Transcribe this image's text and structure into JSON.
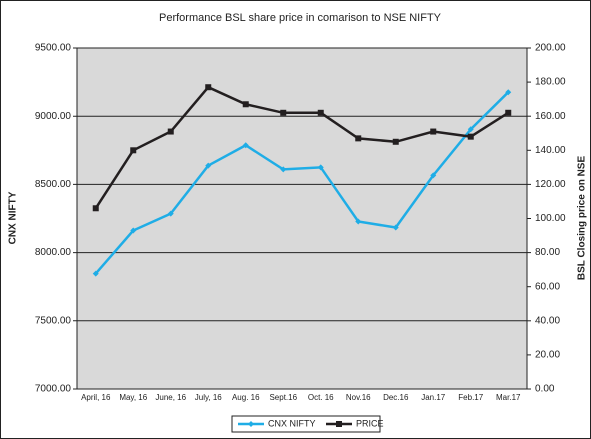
{
  "chart_data": {
    "type": "line",
    "title": "Performance BSL share price in comarison to NSE NIFTY",
    "y_label": "CNX NIFTY",
    "y2_label": "BSL Closing price on NSE",
    "categories": [
      "April, 16",
      "May, 16",
      "June, 16",
      "July, 16",
      "Aug. 16",
      "Sept.16",
      "Oct. 16",
      "Nov.16",
      "Dec.16",
      "Jan.17",
      "Feb.17",
      "Mar.17"
    ],
    "series": [
      {
        "name": "CNX NIFTY",
        "color": "#1fade6",
        "values": [
          7846,
          8162,
          8286,
          8638,
          8787,
          8610,
          8625,
          8228,
          8184,
          8566,
          8904,
          9176
        ]
      },
      {
        "name": "PRICE",
        "color": "#231f20",
        "axis": "y2",
        "values": [
          106,
          140,
          151,
          177,
          167,
          162,
          162,
          147,
          145,
          151,
          148,
          162
        ]
      }
    ],
    "ylim": [
      7000,
      9500
    ],
    "yticks": [
      {
        "value": 7000,
        "label": "7000.00"
      },
      {
        "value": 7500,
        "label": "7500.00"
      },
      {
        "value": 8000,
        "label": "8000.00"
      },
      {
        "value": 8500,
        "label": "8500.00"
      },
      {
        "value": 9000,
        "label": "9000.00"
      },
      {
        "value": 9500,
        "label": "9500.00"
      }
    ],
    "y2lim": [
      0,
      200
    ],
    "y2ticks": [
      {
        "value": 0,
        "label": "0.00"
      },
      {
        "value": 20,
        "label": "20.00"
      },
      {
        "value": 40,
        "label": "40.00"
      },
      {
        "value": 60,
        "label": "60.00"
      },
      {
        "value": 80,
        "label": "80.00"
      },
      {
        "value": 100,
        "label": "100.00"
      },
      {
        "value": 120,
        "label": "120.00"
      },
      {
        "value": 140,
        "label": "140.00"
      },
      {
        "value": 160,
        "label": "160.00"
      },
      {
        "value": 180,
        "label": "180.00"
      },
      {
        "value": 200,
        "label": "200.00"
      }
    ],
    "grid": true,
    "legend": "bottom"
  }
}
